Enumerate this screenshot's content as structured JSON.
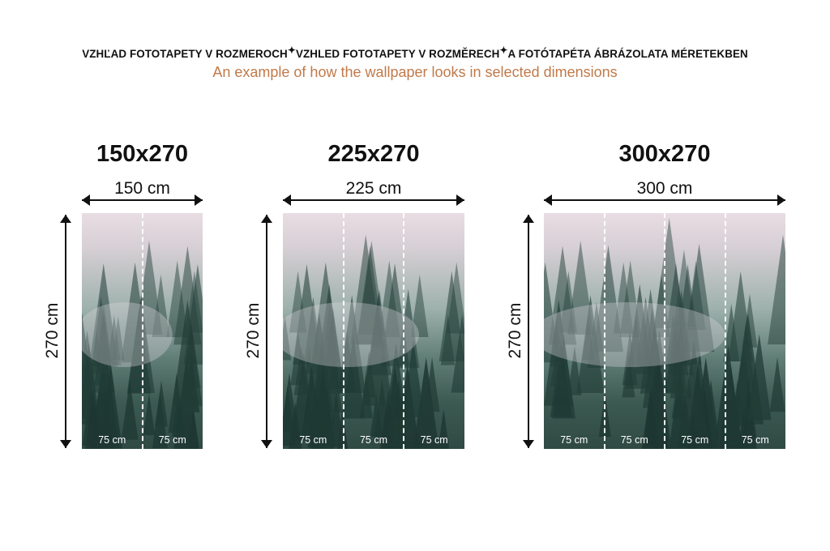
{
  "header": {
    "line_parts": [
      "VZHĽAD FOTOTAPETY V ROZMEROCH",
      "VZHLED FOTOTAPETY V ROZMĚRECH",
      "A FOTÓTAPÉTA ÁBRÁZOLATA MÉRETEKBEN"
    ],
    "separator_icon": "sparkle-icon",
    "subtitle": "An example of how the wallpaper looks in selected dimensions",
    "subtitle_color": "#c07a4a"
  },
  "panels": [
    {
      "title": "150x270",
      "width_label": "150 cm",
      "height_label": "270 cm",
      "strips": [
        "75 cm",
        "75 cm"
      ]
    },
    {
      "title": "225x270",
      "width_label": "225 cm",
      "height_label": "270 cm",
      "strips": [
        "75 cm",
        "75 cm",
        "75 cm"
      ]
    },
    {
      "title": "300x270",
      "width_label": "300 cm",
      "height_label": "270 cm",
      "strips": [
        "75 cm",
        "75 cm",
        "75 cm",
        "75 cm"
      ]
    }
  ]
}
